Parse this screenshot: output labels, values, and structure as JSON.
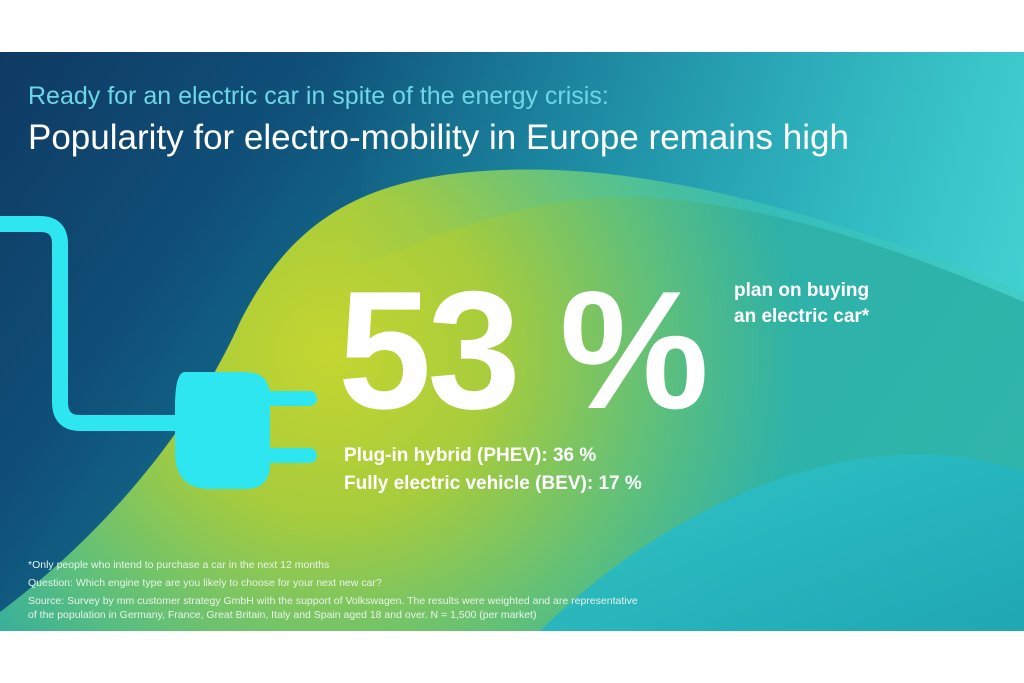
{
  "header": {
    "subtitle": "Ready for an electric car in spite of the energy crisis:",
    "title": "Popularity for electro-mobility in Europe remains high"
  },
  "highlight": {
    "value": "53 %",
    "label_line1": "plan on buying",
    "label_line2": "an electric car*"
  },
  "breakdown": [
    {
      "text": "Plug-in hybrid (PHEV): 36 %",
      "value": 36
    },
    {
      "text": "Fully electric vehicle (BEV): 17 %",
      "value": 17
    }
  ],
  "footnotes": {
    "asterisk": "*Only people who intend to purchase a car in the next 12 months",
    "question": "Question: Which engine type are you likely to choose for your next new car?",
    "source_line1": "Source: Survey by mm customer strategy GmbH with the support of Volkswagen. The results were weighted and are representative",
    "source_line2": "of the population in Germany, France, Great Britain, Italy and Spain aged 18 and over. N = 1,500 (per market)"
  },
  "icons": [
    "electric-plug-icon"
  ],
  "colors": {
    "plug": "#2ee6f0",
    "subtitle": "#6fd6e6",
    "text": "#ffffff",
    "lime": "#b6d23a"
  }
}
